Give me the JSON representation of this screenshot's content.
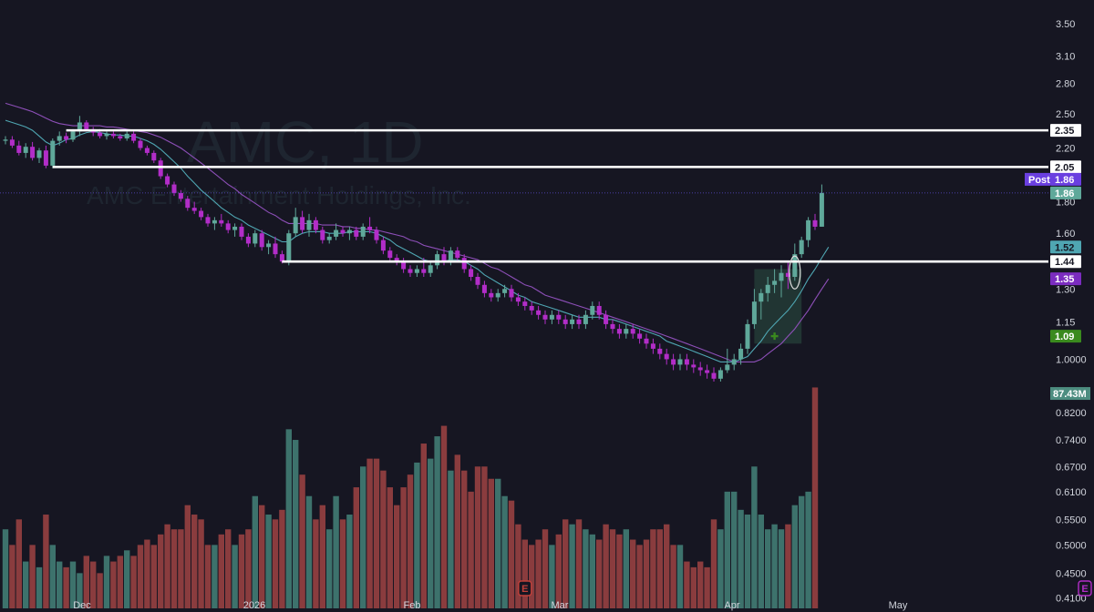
{
  "watermark": {
    "title": "AMC, 1D",
    "subtitle": "AMC Entertainment Holdings, Inc."
  },
  "colors": {
    "background": "#161622",
    "up": "#5fa89a",
    "down": "#b22dc8",
    "vol_up": "#3d726c",
    "vol_down": "#8a3c3e",
    "ma_fast": "#4fa6b2",
    "ma_slow": "#8d4fb8",
    "level_line": "#ffffff",
    "post_badge": "#6a3fe0",
    "badge_teal": "#4fa6b2",
    "badge_purple": "#7b2cc0",
    "badge_green": "#3a8a1e",
    "badge_volume": "#4d8d80",
    "earnings_down": "#c2413a",
    "earnings_up": "#b22dc8"
  },
  "chart_data": {
    "type": "candlestick",
    "symbol": "AMC",
    "interval": "1D",
    "price_scale": "log",
    "ylim": [
      0.4,
      3.72
    ],
    "y_ticks": [
      "3.50",
      "3.10",
      "2.80",
      "2.50",
      "2.20",
      "1.80",
      "1.60",
      "1.30",
      "1.15",
      "1.0000",
      "0.8200",
      "0.7400",
      "0.6700",
      "0.6100",
      "0.5500",
      "0.5000",
      "0.4500",
      "0.4100"
    ],
    "x_ticks": [
      "Dec",
      "2026",
      "Feb",
      "Mar",
      "Apr",
      "May"
    ],
    "candles": [
      [
        2.26,
        2.3,
        2.23,
        2.27
      ],
      [
        2.27,
        2.3,
        2.2,
        2.22
      ],
      [
        2.22,
        2.26,
        2.14,
        2.16
      ],
      [
        2.16,
        2.24,
        2.12,
        2.21
      ],
      [
        2.21,
        2.25,
        2.1,
        2.12
      ],
      [
        2.12,
        2.2,
        2.08,
        2.18
      ],
      [
        2.18,
        2.22,
        2.04,
        2.06
      ],
      [
        2.06,
        2.28,
        2.04,
        2.26
      ],
      [
        2.26,
        2.34,
        2.22,
        2.3
      ],
      [
        2.3,
        2.33,
        2.24,
        2.27
      ],
      [
        2.27,
        2.36,
        2.25,
        2.34
      ],
      [
        2.34,
        2.48,
        2.3,
        2.42
      ],
      [
        2.42,
        2.44,
        2.34,
        2.36
      ],
      [
        2.36,
        2.38,
        2.3,
        2.33
      ],
      [
        2.33,
        2.36,
        2.28,
        2.3
      ],
      [
        2.3,
        2.34,
        2.27,
        2.32
      ],
      [
        2.32,
        2.34,
        2.28,
        2.3
      ],
      [
        2.3,
        2.32,
        2.26,
        2.28
      ],
      [
        2.28,
        2.34,
        2.26,
        2.32
      ],
      [
        2.32,
        2.34,
        2.24,
        2.26
      ],
      [
        2.26,
        2.28,
        2.18,
        2.2
      ],
      [
        2.2,
        2.22,
        2.14,
        2.16
      ],
      [
        2.16,
        2.18,
        2.08,
        2.1
      ],
      [
        2.1,
        2.12,
        1.96,
        1.98
      ],
      [
        1.98,
        2.0,
        1.9,
        1.92
      ],
      [
        1.92,
        1.94,
        1.84,
        1.86
      ],
      [
        1.86,
        1.88,
        1.8,
        1.82
      ],
      [
        1.82,
        1.84,
        1.74,
        1.76
      ],
      [
        1.76,
        1.8,
        1.72,
        1.74
      ],
      [
        1.74,
        1.76,
        1.68,
        1.7
      ],
      [
        1.7,
        1.72,
        1.64,
        1.66
      ],
      [
        1.66,
        1.7,
        1.62,
        1.68
      ],
      [
        1.68,
        1.72,
        1.64,
        1.66
      ],
      [
        1.66,
        1.68,
        1.6,
        1.62
      ],
      [
        1.62,
        1.66,
        1.58,
        1.64
      ],
      [
        1.64,
        1.66,
        1.56,
        1.58
      ],
      [
        1.58,
        1.6,
        1.52,
        1.54
      ],
      [
        1.54,
        1.62,
        1.52,
        1.6
      ],
      [
        1.6,
        1.62,
        1.5,
        1.52
      ],
      [
        1.52,
        1.56,
        1.48,
        1.54
      ],
      [
        1.54,
        1.58,
        1.46,
        1.48
      ],
      [
        1.48,
        1.5,
        1.43,
        1.44
      ],
      [
        1.44,
        1.62,
        1.42,
        1.6
      ],
      [
        1.6,
        1.76,
        1.58,
        1.7
      ],
      [
        1.7,
        1.74,
        1.6,
        1.62
      ],
      [
        1.62,
        1.72,
        1.58,
        1.68
      ],
      [
        1.68,
        1.7,
        1.6,
        1.62
      ],
      [
        1.62,
        1.64,
        1.54,
        1.56
      ],
      [
        1.56,
        1.6,
        1.54,
        1.58
      ],
      [
        1.58,
        1.66,
        1.56,
        1.62
      ],
      [
        1.62,
        1.64,
        1.58,
        1.6
      ],
      [
        1.6,
        1.64,
        1.56,
        1.62
      ],
      [
        1.62,
        1.64,
        1.56,
        1.58
      ],
      [
        1.58,
        1.66,
        1.56,
        1.64
      ],
      [
        1.64,
        1.7,
        1.6,
        1.62
      ],
      [
        1.62,
        1.64,
        1.54,
        1.56
      ],
      [
        1.56,
        1.58,
        1.48,
        1.5
      ],
      [
        1.5,
        1.52,
        1.44,
        1.46
      ],
      [
        1.46,
        1.48,
        1.42,
        1.44
      ],
      [
        1.44,
        1.46,
        1.38,
        1.4
      ],
      [
        1.4,
        1.42,
        1.36,
        1.38
      ],
      [
        1.38,
        1.42,
        1.36,
        1.4
      ],
      [
        1.4,
        1.46,
        1.36,
        1.38
      ],
      [
        1.38,
        1.44,
        1.36,
        1.42
      ],
      [
        1.42,
        1.5,
        1.4,
        1.48
      ],
      [
        1.48,
        1.52,
        1.42,
        1.44
      ],
      [
        1.44,
        1.52,
        1.42,
        1.5
      ],
      [
        1.5,
        1.52,
        1.44,
        1.46
      ],
      [
        1.46,
        1.48,
        1.38,
        1.4
      ],
      [
        1.4,
        1.42,
        1.34,
        1.36
      ],
      [
        1.36,
        1.38,
        1.3,
        1.32
      ],
      [
        1.32,
        1.34,
        1.26,
        1.28
      ],
      [
        1.28,
        1.3,
        1.24,
        1.26
      ],
      [
        1.26,
        1.3,
        1.24,
        1.28
      ],
      [
        1.28,
        1.32,
        1.26,
        1.3
      ],
      [
        1.3,
        1.32,
        1.24,
        1.26
      ],
      [
        1.26,
        1.28,
        1.22,
        1.24
      ],
      [
        1.24,
        1.26,
        1.2,
        1.22
      ],
      [
        1.22,
        1.24,
        1.18,
        1.2
      ],
      [
        1.2,
        1.22,
        1.16,
        1.18
      ],
      [
        1.18,
        1.2,
        1.14,
        1.16
      ],
      [
        1.16,
        1.2,
        1.14,
        1.18
      ],
      [
        1.18,
        1.2,
        1.14,
        1.16
      ],
      [
        1.16,
        1.18,
        1.12,
        1.14
      ],
      [
        1.14,
        1.18,
        1.12,
        1.16
      ],
      [
        1.16,
        1.18,
        1.12,
        1.14
      ],
      [
        1.14,
        1.2,
        1.12,
        1.18
      ],
      [
        1.18,
        1.24,
        1.16,
        1.22
      ],
      [
        1.22,
        1.24,
        1.16,
        1.18
      ],
      [
        1.18,
        1.2,
        1.12,
        1.14
      ],
      [
        1.14,
        1.16,
        1.1,
        1.12
      ],
      [
        1.12,
        1.14,
        1.08,
        1.1
      ],
      [
        1.1,
        1.14,
        1.08,
        1.12
      ],
      [
        1.12,
        1.14,
        1.08,
        1.1
      ],
      [
        1.1,
        1.12,
        1.06,
        1.08
      ],
      [
        1.08,
        1.1,
        1.04,
        1.06
      ],
      [
        1.06,
        1.08,
        1.02,
        1.04
      ],
      [
        1.04,
        1.06,
        1.0,
        1.02
      ],
      [
        1.02,
        1.04,
        0.98,
        1.0
      ],
      [
        1.0,
        1.02,
        0.96,
        0.98
      ],
      [
        0.98,
        1.02,
        0.96,
        1.0
      ],
      [
        1.0,
        1.02,
        0.96,
        0.98
      ],
      [
        0.98,
        1.0,
        0.95,
        0.97
      ],
      [
        0.97,
        0.99,
        0.94,
        0.96
      ],
      [
        0.96,
        0.98,
        0.93,
        0.95
      ],
      [
        0.95,
        0.97,
        0.92,
        0.93
      ],
      [
        0.93,
        0.97,
        0.92,
        0.96
      ],
      [
        0.96,
        1.04,
        0.95,
        0.98
      ],
      [
        0.98,
        1.02,
        0.96,
        1.0
      ],
      [
        1.0,
        1.06,
        0.98,
        1.04
      ],
      [
        1.04,
        1.16,
        1.02,
        1.14
      ],
      [
        1.14,
        1.3,
        1.12,
        1.24
      ],
      [
        1.24,
        1.3,
        1.16,
        1.28
      ],
      [
        1.28,
        1.36,
        1.24,
        1.32
      ],
      [
        1.32,
        1.4,
        1.28,
        1.34
      ],
      [
        1.34,
        1.42,
        1.26,
        1.38
      ],
      [
        1.38,
        1.44,
        1.3,
        1.36
      ],
      [
        1.36,
        1.54,
        1.34,
        1.48
      ],
      [
        1.48,
        1.58,
        1.46,
        1.56
      ],
      [
        1.56,
        1.7,
        1.52,
        1.68
      ],
      [
        1.68,
        1.72,
        1.62,
        1.64
      ],
      [
        1.64,
        1.92,
        1.64,
        1.86
      ]
    ],
    "volume": [
      0.53,
      0.5,
      0.55,
      0.47,
      0.5,
      0.46,
      0.56,
      0.5,
      0.47,
      0.46,
      0.47,
      0.45,
      0.48,
      0.47,
      0.45,
      0.48,
      0.47,
      0.48,
      0.49,
      0.48,
      0.5,
      0.51,
      0.5,
      0.52,
      0.54,
      0.53,
      0.53,
      0.58,
      0.56,
      0.55,
      0.5,
      0.5,
      0.52,
      0.53,
      0.5,
      0.52,
      0.53,
      0.6,
      0.58,
      0.56,
      0.55,
      0.57,
      0.77,
      0.74,
      0.65,
      0.6,
      0.55,
      0.58,
      0.53,
      0.6,
      0.55,
      0.56,
      0.62,
      0.67,
      0.69,
      0.69,
      0.66,
      0.62,
      0.58,
      0.62,
      0.65,
      0.68,
      0.73,
      0.69,
      0.75,
      0.78,
      0.66,
      0.7,
      0.66,
      0.61,
      0.67,
      0.67,
      0.64,
      0.64,
      0.6,
      0.59,
      0.54,
      0.51,
      0.5,
      0.51,
      0.53,
      0.5,
      0.52,
      0.55,
      0.54,
      0.55,
      0.53,
      0.52,
      0.51,
      0.54,
      0.53,
      0.52,
      0.53,
      0.51,
      0.5,
      0.51,
      0.53,
      0.53,
      0.54,
      0.5,
      0.5,
      0.47,
      0.46,
      0.47,
      0.46,
      0.55,
      0.53,
      0.61,
      0.61,
      0.57,
      0.56,
      0.67,
      0.56,
      0.53,
      0.54,
      0.53,
      0.54,
      0.58,
      0.6,
      0.61,
      0.9
    ],
    "ma_fast": [
      2.44,
      2.42,
      2.4,
      2.38,
      2.35,
      2.3,
      2.25,
      2.22,
      2.24,
      2.27,
      2.28,
      2.31,
      2.33,
      2.34,
      2.33,
      2.32,
      2.31,
      2.31,
      2.3,
      2.3,
      2.28,
      2.26,
      2.23,
      2.19,
      2.14,
      2.09,
      2.04,
      1.98,
      1.93,
      1.88,
      1.84,
      1.8,
      1.76,
      1.73,
      1.7,
      1.68,
      1.65,
      1.63,
      1.61,
      1.59,
      1.57,
      1.55,
      1.55,
      1.58,
      1.6,
      1.61,
      1.61,
      1.61,
      1.6,
      1.6,
      1.6,
      1.61,
      1.61,
      1.61,
      1.61,
      1.6,
      1.58,
      1.56,
      1.53,
      1.51,
      1.49,
      1.47,
      1.45,
      1.44,
      1.44,
      1.44,
      1.45,
      1.45,
      1.44,
      1.42,
      1.4,
      1.37,
      1.35,
      1.33,
      1.31,
      1.29,
      1.27,
      1.26,
      1.24,
      1.23,
      1.22,
      1.21,
      1.2,
      1.19,
      1.18,
      1.17,
      1.17,
      1.17,
      1.17,
      1.16,
      1.16,
      1.15,
      1.14,
      1.13,
      1.12,
      1.11,
      1.1,
      1.09,
      1.07,
      1.06,
      1.05,
      1.04,
      1.03,
      1.02,
      1.01,
      1.0,
      0.99,
      0.99,
      0.99,
      1.0,
      1.01,
      1.04,
      1.07,
      1.11,
      1.14,
      1.17,
      1.2,
      1.24,
      1.29,
      1.35,
      1.4,
      1.46,
      1.52
    ],
    "ma_slow": [
      2.6,
      2.58,
      2.56,
      2.54,
      2.52,
      2.49,
      2.46,
      2.43,
      2.41,
      2.4,
      2.39,
      2.39,
      2.39,
      2.39,
      2.39,
      2.38,
      2.38,
      2.37,
      2.36,
      2.35,
      2.34,
      2.33,
      2.31,
      2.29,
      2.26,
      2.23,
      2.2,
      2.16,
      2.12,
      2.08,
      2.04,
      2.0,
      1.96,
      1.92,
      1.89,
      1.85,
      1.82,
      1.79,
      1.76,
      1.73,
      1.71,
      1.68,
      1.66,
      1.66,
      1.66,
      1.66,
      1.66,
      1.65,
      1.65,
      1.65,
      1.64,
      1.64,
      1.63,
      1.63,
      1.62,
      1.62,
      1.61,
      1.6,
      1.59,
      1.58,
      1.56,
      1.55,
      1.53,
      1.52,
      1.51,
      1.5,
      1.49,
      1.48,
      1.47,
      1.46,
      1.45,
      1.43,
      1.41,
      1.4,
      1.38,
      1.36,
      1.34,
      1.32,
      1.31,
      1.29,
      1.27,
      1.26,
      1.25,
      1.24,
      1.23,
      1.22,
      1.21,
      1.2,
      1.19,
      1.18,
      1.17,
      1.16,
      1.15,
      1.14,
      1.13,
      1.12,
      1.11,
      1.1,
      1.09,
      1.08,
      1.07,
      1.06,
      1.05,
      1.04,
      1.03,
      1.02,
      1.01,
      1.0,
      0.99,
      0.99,
      0.99,
      0.99,
      1.0,
      1.02,
      1.04,
      1.06,
      1.09,
      1.12,
      1.16,
      1.2,
      1.25,
      1.3,
      1.35
    ]
  },
  "levels": [
    {
      "label": "2.35",
      "price": 2.35,
      "x_start_index": 9
    },
    {
      "label": "2.05",
      "price": 2.05,
      "x_start_index": 7
    },
    {
      "label": "1.44",
      "price": 1.44,
      "x_start_index": 41
    }
  ],
  "badges": {
    "post_label": "Post",
    "post_price": "1.86",
    "last_price": "1.86",
    "ma_fast_value": "1.52",
    "ma_slow_value": "1.35",
    "signal_value": "1.09",
    "volume_value": "87.43M"
  },
  "earnings_markers": [
    {
      "label": "E",
      "x_index": 77,
      "kind": "past"
    },
    {
      "label": "E",
      "x_index": 160,
      "kind": "upcoming"
    }
  ],
  "signal_marker": {
    "x_index": 114,
    "price": 1.09
  },
  "annotation_ellipse": {
    "x_index": 117,
    "low": 1.3,
    "high": 1.47
  },
  "breakout_box": {
    "x_start_index": 111,
    "x_end_index": 118,
    "low": 1.06,
    "high": 1.4
  }
}
